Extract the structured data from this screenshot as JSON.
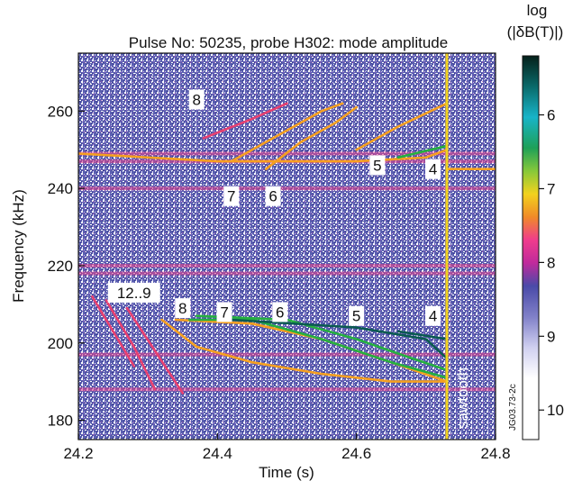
{
  "chart_data": {
    "type": "heatmap",
    "title": "Pulse No: 50235, probe H302: mode amplitude",
    "xlabel": "Time (s)",
    "ylabel": "Frequency (kHz)",
    "xlim": [
      24.2,
      24.8
    ],
    "ylim": [
      175,
      275
    ],
    "x_ticks": [
      "24.2",
      "24.4",
      "24.6",
      "24.8"
    ],
    "y_ticks": [
      "180",
      "200",
      "220",
      "240",
      "260"
    ],
    "colorbar": {
      "title_line1": "log",
      "title_line2": "(|δB(T)|)",
      "range": [
        5.2,
        10.4
      ],
      "ticks": [
        "6",
        "7",
        "8",
        "9",
        "10"
      ],
      "scale_colors": [
        "#1e8c6e",
        "#f2d21e",
        "#f03c8c",
        "#5050b0",
        "#ffffff"
      ]
    },
    "vertical_line": {
      "x": 24.73,
      "label": "sawtooth",
      "color": "#f0d020"
    },
    "background_bands_khz": [
      249,
      247,
      240,
      220,
      218,
      197,
      188
    ],
    "mode_labels": [
      {
        "text": "8",
        "x": 24.37,
        "y": 263
      },
      {
        "text": "7",
        "x": 24.42,
        "y": 238
      },
      {
        "text": "6",
        "x": 24.48,
        "y": 238
      },
      {
        "text": "5",
        "x": 24.63,
        "y": 246
      },
      {
        "text": "4",
        "x": 24.71,
        "y": 245
      },
      {
        "text": "12..9",
        "x": 24.28,
        "y": 213
      },
      {
        "text": "8",
        "x": 24.35,
        "y": 209
      },
      {
        "text": "7",
        "x": 24.41,
        "y": 208
      },
      {
        "text": "6",
        "x": 24.49,
        "y": 208
      },
      {
        "text": "5",
        "x": 24.6,
        "y": 207
      },
      {
        "text": "4",
        "x": 24.71,
        "y": 207
      }
    ],
    "series": [
      {
        "values": [
          [
            24.27,
            209
          ],
          [
            24.31,
            198
          ],
          [
            24.35,
            187
          ]
        ],
        "color": "#e84070"
      },
      {
        "values": [
          [
            24.24,
            211
          ],
          [
            24.28,
            199
          ],
          [
            24.31,
            188
          ]
        ],
        "color": "#e84070"
      },
      {
        "values": [
          [
            24.22,
            212
          ],
          [
            24.25,
            203
          ],
          [
            24.28,
            194
          ]
        ],
        "color": "#e84070"
      },
      {
        "values": [
          [
            24.32,
            206
          ],
          [
            24.37,
            199
          ],
          [
            24.45,
            195
          ],
          [
            24.55,
            192
          ],
          [
            24.65,
            190
          ],
          [
            24.73,
            190
          ]
        ],
        "color": "#f5a020"
      },
      {
        "values": [
          [
            24.34,
            206
          ],
          [
            24.45,
            205
          ],
          [
            24.55,
            201
          ],
          [
            24.65,
            195
          ],
          [
            24.73,
            190
          ]
        ],
        "color": "#f5a020"
      },
      {
        "values": [
          [
            24.36,
            206
          ],
          [
            24.45,
            206
          ],
          [
            24.55,
            201
          ],
          [
            24.65,
            195
          ],
          [
            24.73,
            191
          ]
        ],
        "color": "#25b040"
      },
      {
        "values": [
          [
            24.37,
            207
          ],
          [
            24.5,
            206
          ],
          [
            24.6,
            201
          ],
          [
            24.68,
            196
          ],
          [
            24.73,
            193
          ]
        ],
        "color": "#25b040"
      },
      {
        "values": [
          [
            24.42,
            206
          ],
          [
            24.6,
            204
          ],
          [
            24.7,
            201
          ],
          [
            24.73,
            196
          ]
        ],
        "color": "#0a5a50"
      },
      {
        "values": [
          [
            24.66,
            203
          ],
          [
            24.73,
            201
          ]
        ],
        "color": "#0a5a50"
      },
      {
        "values": [
          [
            24.2,
            249
          ],
          [
            24.3,
            248
          ],
          [
            24.4,
            247
          ],
          [
            24.5,
            247
          ],
          [
            24.6,
            247
          ],
          [
            24.7,
            248
          ],
          [
            24.73,
            250
          ]
        ],
        "color": "#f5a020"
      },
      {
        "values": [
          [
            24.42,
            247
          ],
          [
            24.5,
            255
          ],
          [
            24.55,
            260
          ],
          [
            24.58,
            262
          ]
        ],
        "color": "#f5a020"
      },
      {
        "values": [
          [
            24.47,
            245
          ],
          [
            24.52,
            252
          ],
          [
            24.57,
            257
          ],
          [
            24.6,
            261
          ]
        ],
        "color": "#f5a020"
      },
      {
        "values": [
          [
            24.38,
            253
          ],
          [
            24.45,
            258
          ],
          [
            24.5,
            262
          ]
        ],
        "color": "#e84070"
      },
      {
        "values": [
          [
            24.6,
            250
          ],
          [
            24.66,
            256
          ],
          [
            24.73,
            262
          ]
        ],
        "color": "#f5a020"
      },
      {
        "values": [
          [
            24.66,
            248
          ],
          [
            24.73,
            251
          ]
        ],
        "color": "#25b040"
      },
      {
        "values": [
          [
            24.73,
            245
          ],
          [
            24.8,
            245
          ]
        ],
        "color": "#f5a020"
      }
    ]
  }
}
